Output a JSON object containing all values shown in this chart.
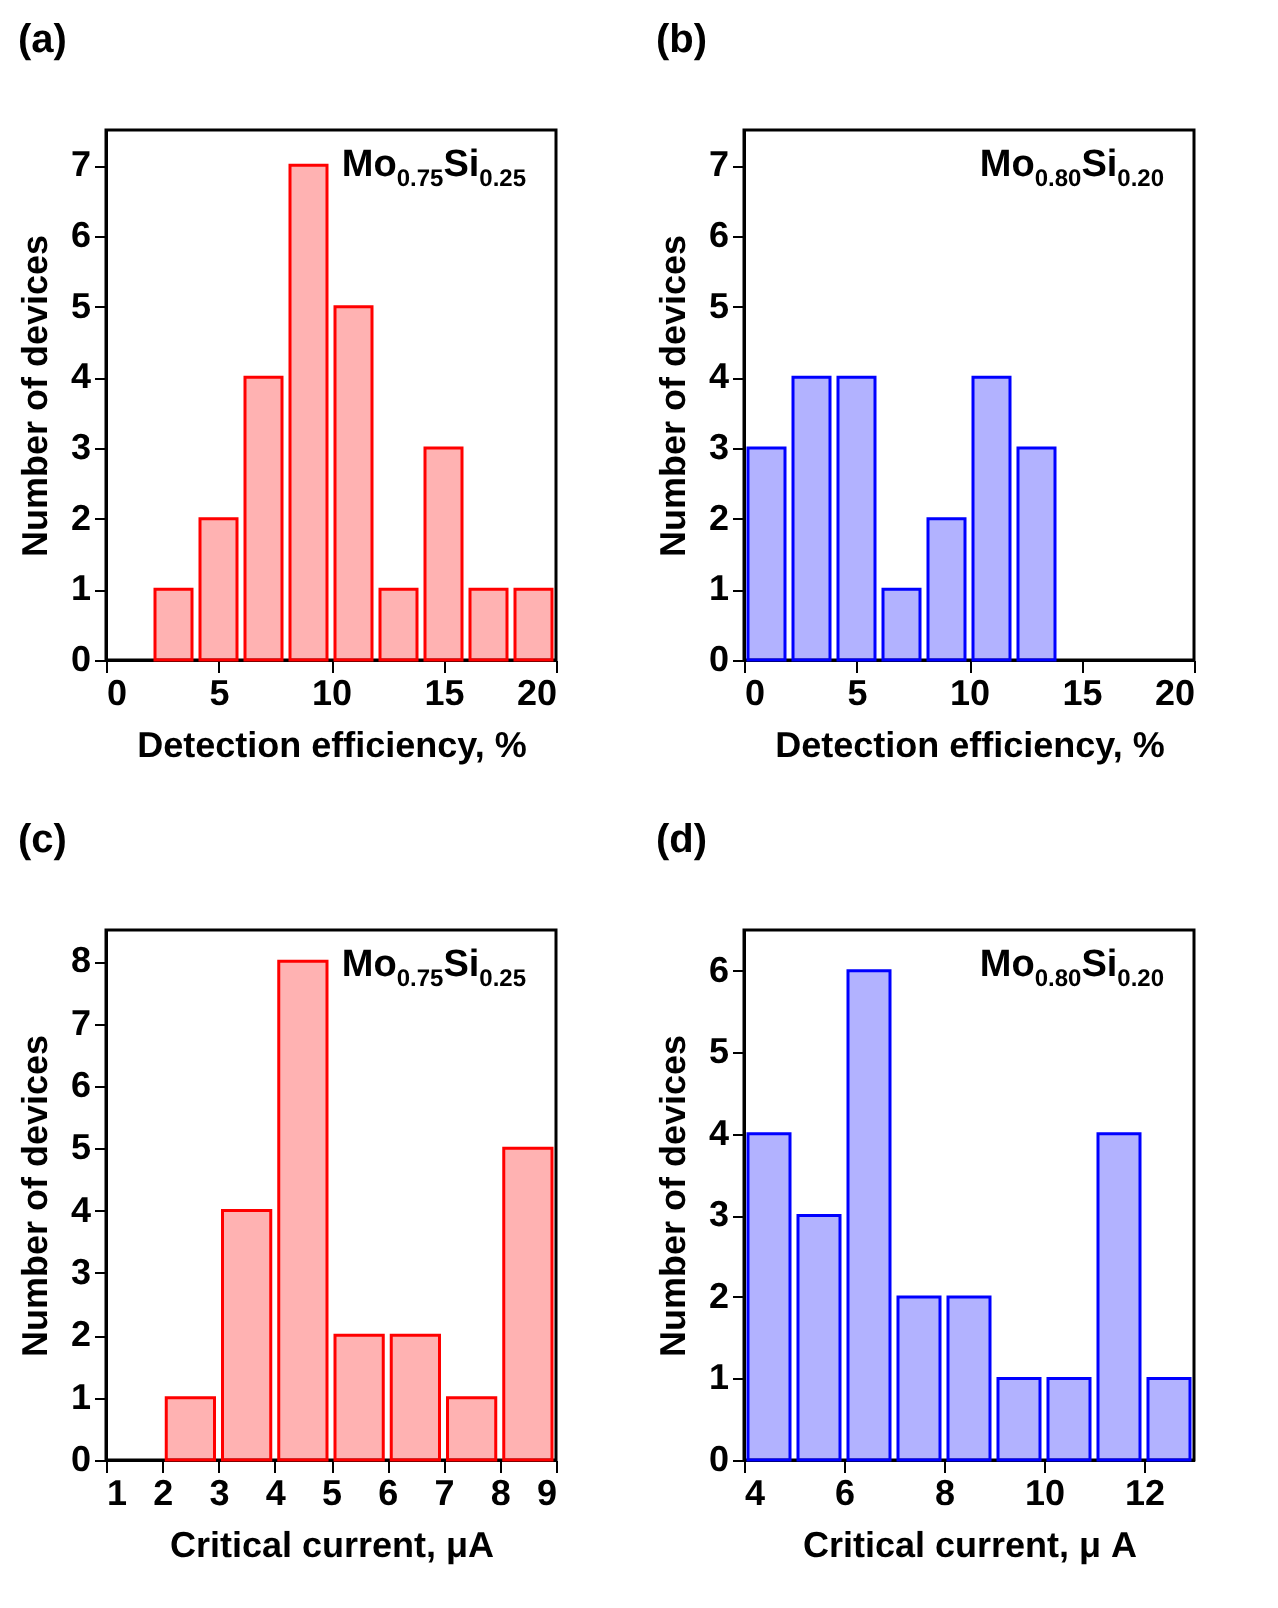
{
  "chart_data": [
    {
      "type": "histogram",
      "title": "(a)",
      "xlabel": "Detection efficiency, %",
      "ylabel": "Number of devices",
      "annotations": [
        "Mo$_{0.75}$Si$_{0.25}$"
      ],
      "bins": [
        2,
        4,
        6,
        8,
        10,
        12,
        14,
        16,
        18,
        20
      ],
      "values": [
        1,
        2,
        4,
        7,
        5,
        1,
        3,
        1,
        1
      ],
      "color": "#ff0000",
      "xlim": [
        0,
        20
      ],
      "xticks": [
        0,
        5,
        10,
        15,
        20
      ],
      "ylim": [
        0,
        7.5
      ],
      "yticks": [
        0,
        1,
        2,
        3,
        4,
        5,
        6,
        7
      ]
    },
    {
      "type": "histogram",
      "title": "(b)",
      "xlabel": "Detection efficiency, %",
      "ylabel": "Number of devices",
      "annotations": [
        "Mo$_{0.80}$Si$_{0.20}$"
      ],
      "bins": [
        0,
        2,
        4,
        6,
        8,
        10,
        12,
        14
      ],
      "values": [
        3,
        4,
        4,
        1,
        2,
        4,
        3
      ],
      "color": "#0000ff",
      "xlim": [
        0,
        20
      ],
      "xticks": [
        0,
        5,
        10,
        15,
        20
      ],
      "ylim": [
        0,
        7.5
      ],
      "yticks": [
        0,
        1,
        2,
        3,
        4,
        5,
        6,
        7
      ]
    },
    {
      "type": "histogram",
      "title": "(c)",
      "xlabel": "Critical current, μA",
      "ylabel": "Number of devices",
      "annotations": [
        "Mo$_{0.75}$Si$_{0.25}$"
      ],
      "bins": [
        2,
        3,
        4,
        5,
        6,
        7,
        8,
        9
      ],
      "values": [
        1,
        4,
        8,
        2,
        2,
        1,
        5
      ],
      "color": "#ff0000",
      "xlim": [
        1,
        9
      ],
      "xticks": [
        1,
        2,
        3,
        4,
        5,
        6,
        7,
        8,
        9
      ],
      "ylim": [
        0,
        8.5
      ],
      "yticks": [
        0,
        1,
        2,
        3,
        4,
        5,
        6,
        7,
        8
      ]
    },
    {
      "type": "histogram",
      "title": "(d)",
      "xlabel": "Critical current, μ A",
      "ylabel": "Number of devices",
      "annotations": [
        "Mo$_{0.80}$Si$_{0.20}$"
      ],
      "bins": [
        4,
        5,
        6,
        7,
        8,
        9,
        10,
        11,
        12,
        13
      ],
      "values": [
        4,
        3,
        6,
        2,
        2,
        1,
        1,
        4,
        1
      ],
      "color": "#0000ff",
      "xlim": [
        4,
        13
      ],
      "xticks": [
        4,
        6,
        8,
        10,
        12
      ],
      "ylim": [
        0,
        6.5
      ],
      "yticks": [
        0,
        1,
        2,
        3,
        4,
        5,
        6
      ]
    }
  ]
}
